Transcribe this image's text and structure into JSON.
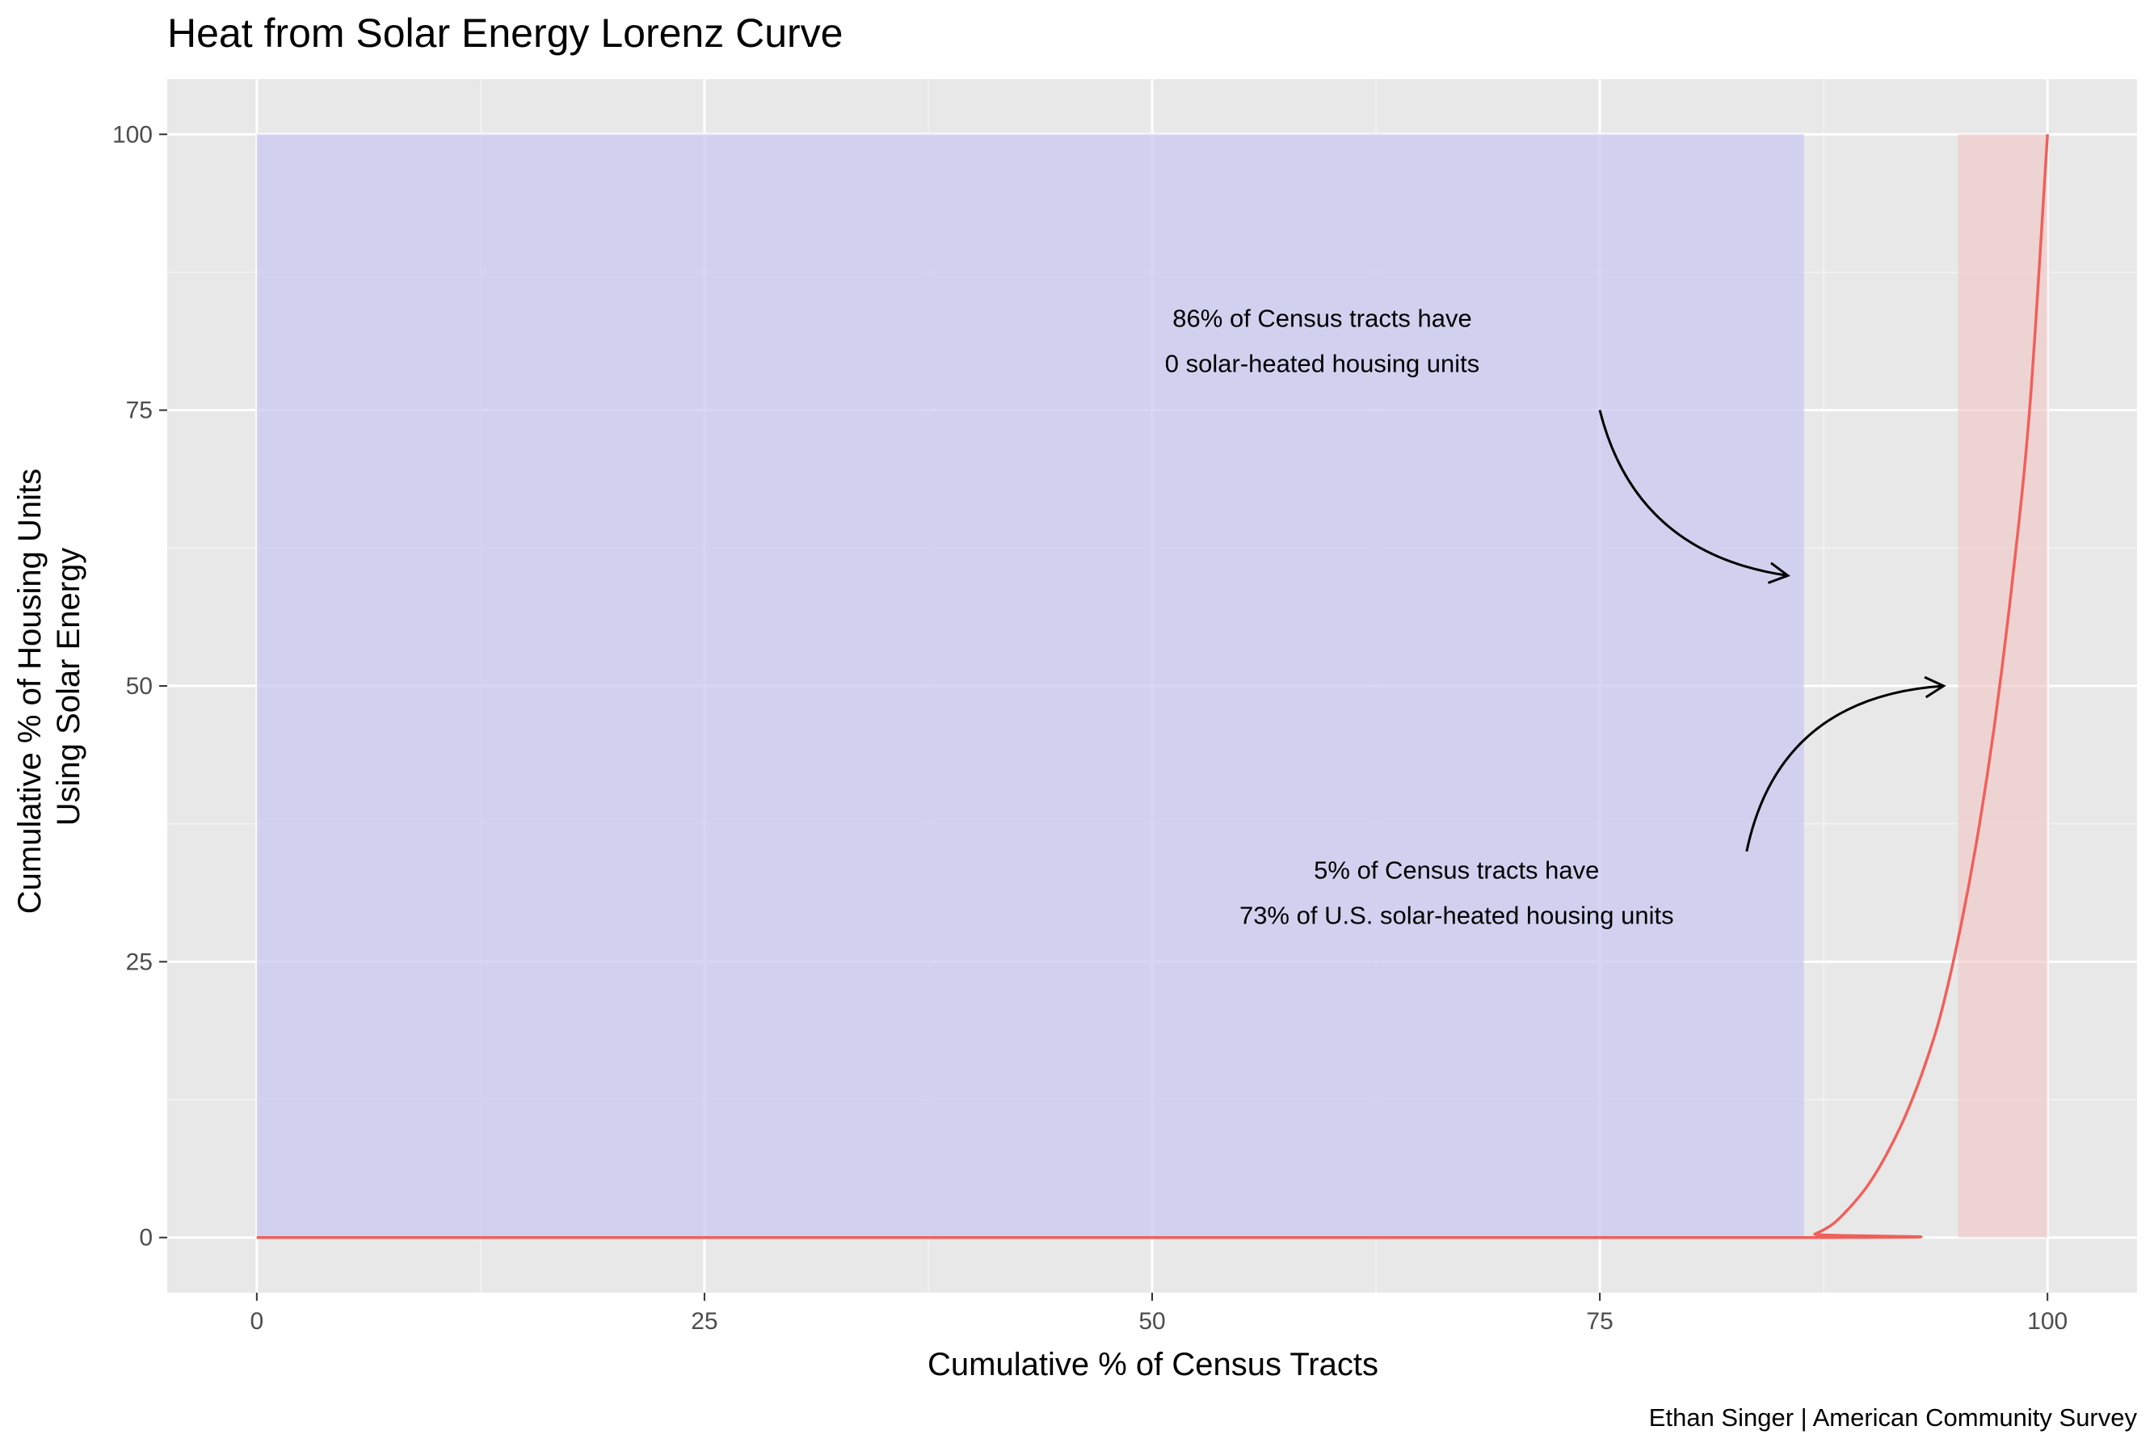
{
  "chart_data": {
    "type": "line",
    "title": "Heat from Solar Energy Lorenz Curve",
    "xlabel": "Cumulative % of Census Tracts",
    "ylabel_lines": [
      "Cumulative % of Housing Units",
      "Using Solar Energy"
    ],
    "caption": "Ethan Singer | American Community Survey",
    "xlim": [
      -5,
      105
    ],
    "ylim": [
      -5,
      105
    ],
    "x_ticks": [
      0,
      25,
      50,
      75,
      100
    ],
    "y_ticks": [
      0,
      25,
      50,
      75,
      100
    ],
    "x_tick_labels": [
      "0",
      "25",
      "50",
      "75",
      "100"
    ],
    "y_tick_labels": [
      "0",
      "25",
      "50",
      "75",
      "100"
    ],
    "grid": true,
    "series": [
      {
        "color": "#F0605A",
        "x": [
          0,
          86.4,
          87,
          88,
          89,
          90,
          91,
          92,
          93,
          94,
          95,
          96,
          97,
          98,
          99,
          100
        ],
        "y": [
          0,
          0,
          0.3,
          1.2,
          2.8,
          4.8,
          7.5,
          10.8,
          14.9,
          20.0,
          27.0,
          35.5,
          46.0,
          59.0,
          75.0,
          100
        ]
      }
    ],
    "highlight_regions": [
      {
        "x0": 0,
        "x1": 86.4,
        "y0": 0,
        "y1": 100,
        "color": "#C9C9F2",
        "opacity": 0.75
      },
      {
        "x0": 95,
        "x1": 100,
        "y0": 0,
        "y1": 100,
        "color": "#F2C4C4",
        "opacity": 0.6
      }
    ],
    "annotations": [
      {
        "lines": [
          "86% of Census tracts have",
          "0 solar-heated housing units"
        ],
        "x": 59.5,
        "y": 80.5
      },
      {
        "lines": [
          "5% of Census tracts have",
          "73% of U.S. solar-heated housing units"
        ],
        "x": 67,
        "y": 30.5
      }
    ],
    "arrows": [
      {
        "from": [
          75,
          75
        ],
        "ctrl": [
          77,
          62
        ],
        "to": [
          85.5,
          60
        ]
      },
      {
        "from": [
          83.2,
          35
        ],
        "ctrl": [
          85,
          49
        ],
        "to": [
          94.2,
          50
        ]
      }
    ]
  }
}
